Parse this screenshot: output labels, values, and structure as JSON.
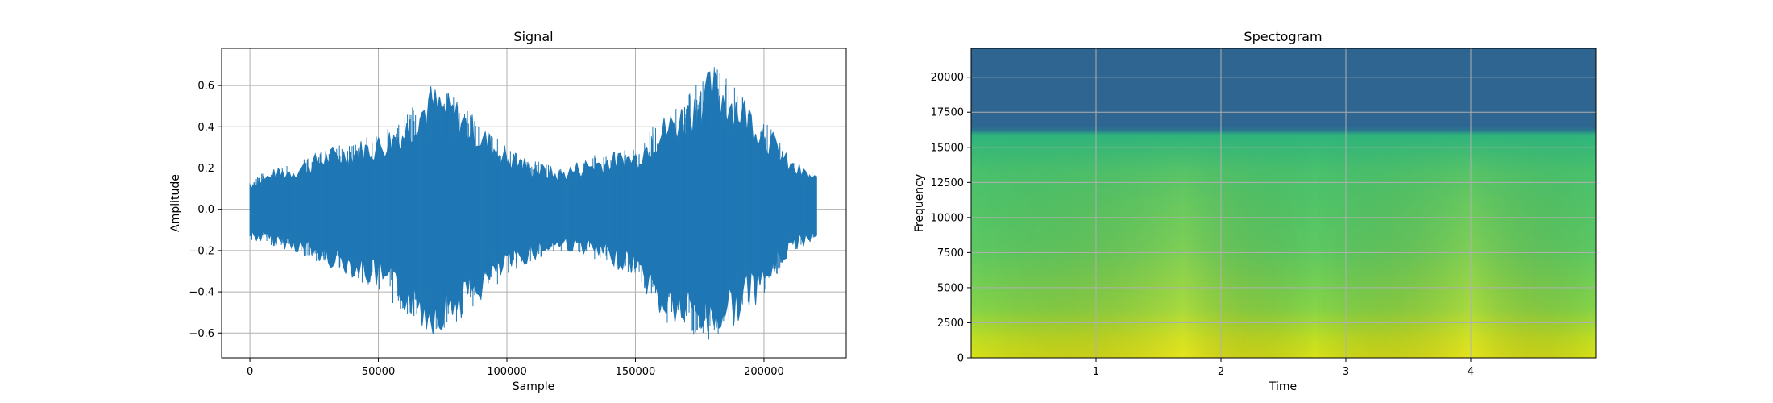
{
  "chart_data": [
    {
      "type": "line",
      "title": "Signal",
      "xlabel": "Sample",
      "ylabel": "Amplitude",
      "xlim": [
        -11000,
        232000
      ],
      "ylim": [
        -0.72,
        0.78
      ],
      "xticks": [
        0,
        50000,
        100000,
        150000,
        200000
      ],
      "yticks": [
        -0.6,
        -0.4,
        -0.2,
        0.0,
        0.2,
        0.4,
        0.6
      ],
      "xtick_labels": [
        "0",
        "50000",
        "100000",
        "150000",
        "200000"
      ],
      "ytick_labels": [
        "−0.6",
        "−0.4",
        "−0.2",
        "0.0",
        "0.2",
        "0.4",
        "0.6"
      ],
      "grid": true,
      "color": "#1f77b4",
      "x": [
        0,
        10000,
        20000,
        30000,
        40000,
        50000,
        60000,
        70000,
        80000,
        90000,
        100000,
        110000,
        120000,
        130000,
        140000,
        150000,
        160000,
        170000,
        180000,
        190000,
        200000,
        210000,
        220500
      ],
      "envelope_upper": [
        0.15,
        0.2,
        0.24,
        0.3,
        0.33,
        0.37,
        0.45,
        0.62,
        0.55,
        0.42,
        0.3,
        0.24,
        0.2,
        0.25,
        0.28,
        0.3,
        0.45,
        0.55,
        0.7,
        0.6,
        0.45,
        0.25,
        0.17
      ],
      "envelope_lower": [
        -0.15,
        -0.18,
        -0.22,
        -0.28,
        -0.33,
        -0.4,
        -0.5,
        -0.62,
        -0.55,
        -0.45,
        -0.32,
        -0.25,
        -0.2,
        -0.22,
        -0.28,
        -0.32,
        -0.55,
        -0.6,
        -0.65,
        -0.55,
        -0.42,
        -0.22,
        -0.14
      ]
    },
    {
      "type": "heatmap",
      "title": "Spectogram",
      "xlabel": "Time",
      "ylabel": "Frequency",
      "xlim": [
        0,
        5.0
      ],
      "ylim": [
        0,
        22050
      ],
      "xticks": [
        1,
        2,
        3,
        4
      ],
      "yticks": [
        0,
        2500,
        5000,
        7500,
        10000,
        12500,
        15000,
        17500,
        20000
      ],
      "xtick_labels": [
        "1",
        "2",
        "3",
        "4"
      ],
      "ytick_labels": [
        "0",
        "2500",
        "5000",
        "7500",
        "10000",
        "12500",
        "15000",
        "17500",
        "20000"
      ],
      "grid": true,
      "colormap": "viridis",
      "band_cutoff_hz": 16000,
      "high_band_color": "#2f6591",
      "time_peaks": [
        1.7,
        4.0
      ]
    }
  ]
}
